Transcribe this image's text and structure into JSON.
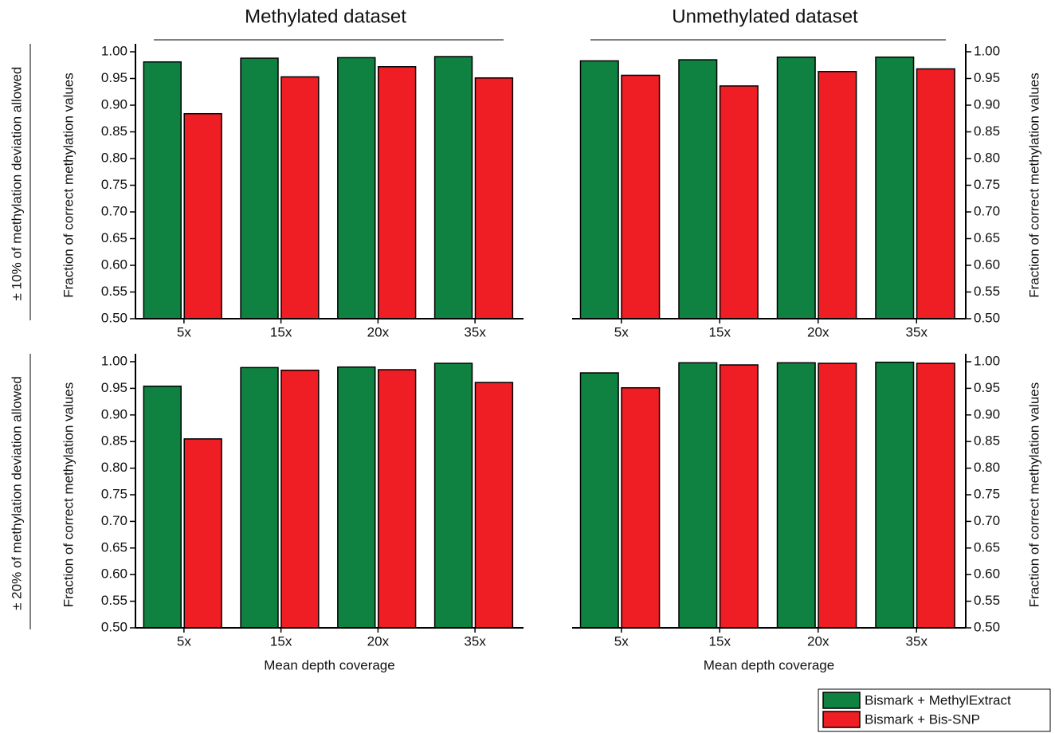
{
  "chart_data": [
    {
      "type": "bar",
      "title": "Methylated dataset",
      "ylabel": "Fraction of correct methylation values",
      "yaxis_side": "left",
      "categories": [
        "5x",
        "15x",
        "20x",
        "35x"
      ],
      "series": [
        {
          "values": [
            0.981,
            0.988,
            0.989,
            0.991
          ]
        },
        {
          "values": [
            0.884,
            0.953,
            0.972,
            0.951
          ]
        }
      ],
      "ylim": [
        0.5,
        1.0
      ],
      "yticks": [
        {
          "value": 0.5,
          "label": "0.50"
        },
        {
          "value": 0.55,
          "label": "0.55"
        },
        {
          "value": 0.6,
          "label": "0.60"
        },
        {
          "value": 0.65,
          "label": "0.65"
        },
        {
          "value": 0.7,
          "label": "0.70"
        },
        {
          "value": 0.75,
          "label": "0.75"
        },
        {
          "value": 0.8,
          "label": "0.80"
        },
        {
          "value": 0.85,
          "label": "0.85"
        },
        {
          "value": 0.9,
          "label": "0.90"
        },
        {
          "value": 0.95,
          "label": "0.95"
        },
        {
          "value": 1.0,
          "label": "1.00"
        }
      ]
    },
    {
      "type": "bar",
      "title": "Unmethylated dataset",
      "ylabel": "Fraction of correct methylation values",
      "yaxis_side": "right",
      "categories": [
        "5x",
        "15x",
        "20x",
        "35x"
      ],
      "series": [
        {
          "values": [
            0.983,
            0.985,
            0.99,
            0.99
          ]
        },
        {
          "values": [
            0.956,
            0.936,
            0.963,
            0.968
          ]
        }
      ],
      "ylim": [
        0.5,
        1.0
      ],
      "yticks": [
        {
          "value": 0.5,
          "label": "0.50"
        },
        {
          "value": 0.55,
          "label": "0.55"
        },
        {
          "value": 0.6,
          "label": "0.60"
        },
        {
          "value": 0.65,
          "label": "0.65"
        },
        {
          "value": 0.7,
          "label": "0.70"
        },
        {
          "value": 0.75,
          "label": "0.75"
        },
        {
          "value": 0.8,
          "label": "0.80"
        },
        {
          "value": 0.85,
          "label": "0.85"
        },
        {
          "value": 0.9,
          "label": "0.90"
        },
        {
          "value": 0.95,
          "label": "0.95"
        },
        {
          "value": 1.0,
          "label": "1.00"
        }
      ]
    },
    {
      "type": "bar",
      "ylabel": "Fraction of correct methylation values",
      "xlabel": "Mean depth coverage",
      "yaxis_side": "left",
      "categories": [
        "5x",
        "15x",
        "20x",
        "35x"
      ],
      "series": [
        {
          "values": [
            0.954,
            0.989,
            0.99,
            0.997
          ]
        },
        {
          "values": [
            0.855,
            0.984,
            0.985,
            0.961
          ]
        }
      ],
      "ylim": [
        0.5,
        1.0
      ],
      "yticks": [
        {
          "value": 0.5,
          "label": "0.50"
        },
        {
          "value": 0.55,
          "label": "0.55"
        },
        {
          "value": 0.6,
          "label": "0.60"
        },
        {
          "value": 0.65,
          "label": "0.65"
        },
        {
          "value": 0.7,
          "label": "0.70"
        },
        {
          "value": 0.75,
          "label": "0.75"
        },
        {
          "value": 0.8,
          "label": "0.80"
        },
        {
          "value": 0.85,
          "label": "0.85"
        },
        {
          "value": 0.9,
          "label": "0.90"
        },
        {
          "value": 0.95,
          "label": "0.95"
        },
        {
          "value": 1.0,
          "label": "1.00"
        }
      ]
    },
    {
      "type": "bar",
      "ylabel": "Fraction of correct methylation values",
      "xlabel": "Mean depth coverage",
      "yaxis_side": "right",
      "categories": [
        "5x",
        "15x",
        "20x",
        "35x"
      ],
      "series": [
        {
          "values": [
            0.979,
            0.998,
            0.998,
            0.999
          ]
        },
        {
          "values": [
            0.951,
            0.994,
            0.997,
            0.997
          ]
        }
      ],
      "ylim": [
        0.5,
        1.0
      ],
      "yticks": [
        {
          "value": 0.5,
          "label": "0.50"
        },
        {
          "value": 0.55,
          "label": "0.55"
        },
        {
          "value": 0.6,
          "label": "0.60"
        },
        {
          "value": 0.65,
          "label": "0.65"
        },
        {
          "value": 0.7,
          "label": "0.70"
        },
        {
          "value": 0.75,
          "label": "0.75"
        },
        {
          "value": 0.8,
          "label": "0.80"
        },
        {
          "value": 0.85,
          "label": "0.85"
        },
        {
          "value": 0.9,
          "label": "0.90"
        },
        {
          "value": 0.95,
          "label": "0.95"
        },
        {
          "value": 1.0,
          "label": "1.00"
        }
      ]
    }
  ],
  "row_labels": [
    "± 10% of methylation deviation allowed",
    "± 20% of methylation deviation allowed"
  ],
  "legend": {
    "position": "lower right",
    "entries": [
      {
        "name": "Bismark + MethylExtract",
        "color": "#0f8140"
      },
      {
        "name": "Bismark + Bis-SNP",
        "color": "#ee1e24"
      }
    ]
  }
}
